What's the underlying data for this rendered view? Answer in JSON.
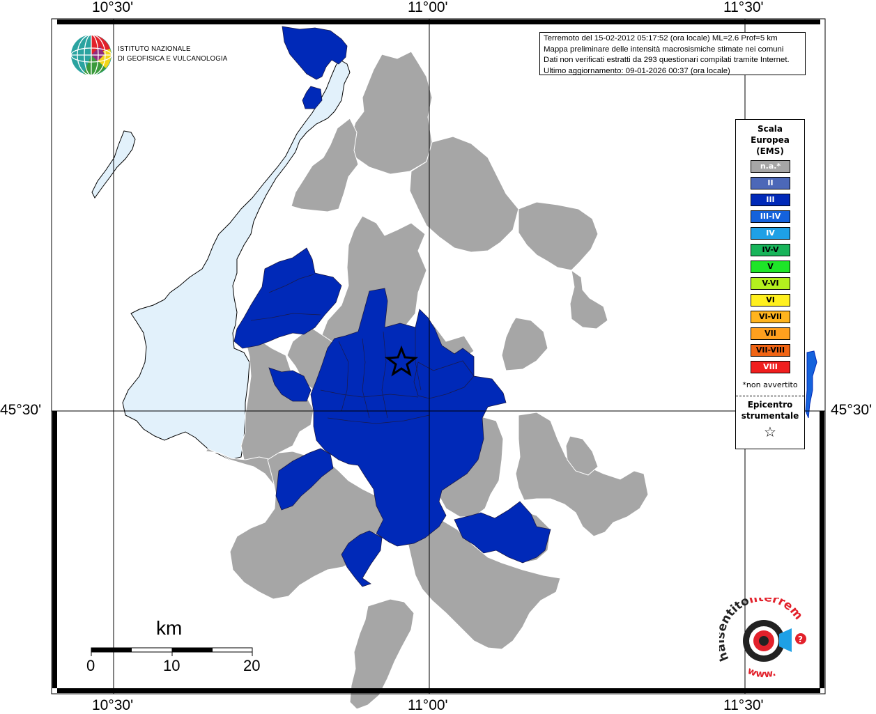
{
  "coords": {
    "lon_top": [
      "10°30'",
      "11°00'",
      "11°30'"
    ],
    "lon_bottom": [
      "10°30'",
      "11°00'",
      "11°30'"
    ],
    "lat_left": "45°30'",
    "lat_right": "45°30'"
  },
  "header": {
    "institute_line1": "ISTITUTO NAZIONALE",
    "institute_line2": "DI GEOFISICA E VULCANOLOGIA"
  },
  "info": {
    "line1": "Terremoto del 15-02-2012 05:17:52 (ora locale) ML=2.6 Prof=5 km",
    "line2": "Mappa preliminare delle intensità macrosismiche stimate nei comuni",
    "line3": "Dati non verificati estratti da 293 questionari compilati tramite Internet.",
    "line4": "Ultimo aggiornamento: 09-01-2026 00:37 (ora locale)"
  },
  "legend": {
    "title1": "Scala",
    "title2": "Europea",
    "title3": "(EMS)",
    "items": [
      {
        "label": "n.a.*",
        "color": "#a6a6a6",
        "text": "#ffffff"
      },
      {
        "label": "II",
        "color": "#4c68b8",
        "text": "#ffffff"
      },
      {
        "label": "III",
        "color": "#0029b8",
        "text": "#ffffff"
      },
      {
        "label": "III-IV",
        "color": "#1462dc",
        "text": "#ffffff"
      },
      {
        "label": "IV",
        "color": "#1ea0e6",
        "text": "#ffffff"
      },
      {
        "label": "IV-V",
        "color": "#18b45a",
        "text": "#000000"
      },
      {
        "label": "V",
        "color": "#1ee628",
        "text": "#000000"
      },
      {
        "label": "V-VI",
        "color": "#b4f01e",
        "text": "#000000"
      },
      {
        "label": "VI",
        "color": "#fff01e",
        "text": "#000000"
      },
      {
        "label": "VI-VII",
        "color": "#ffb41e",
        "text": "#000000"
      },
      {
        "label": "VII",
        "color": "#ffa01e",
        "text": "#000000"
      },
      {
        "label": "VII-VIII",
        "color": "#f06414",
        "text": "#000000"
      },
      {
        "label": "VIII",
        "color": "#f01e1e",
        "text": "#ffffff"
      }
    ],
    "note": "*non avvertito",
    "epicenter1": "Epicentro",
    "epicenter2": "strumentale",
    "epicenter_symbol": "☆"
  },
  "scale": {
    "unit": "km",
    "ticks": [
      "0",
      "10",
      "20"
    ]
  },
  "colors": {
    "lake": "#e2f1fb",
    "grey_municipality": "#a6a6a6",
    "intensity_III": "#0029b8"
  },
  "watermark": {
    "line1": "haisentito",
    "line2": "ilterremoto.it",
    "line3": "www."
  }
}
